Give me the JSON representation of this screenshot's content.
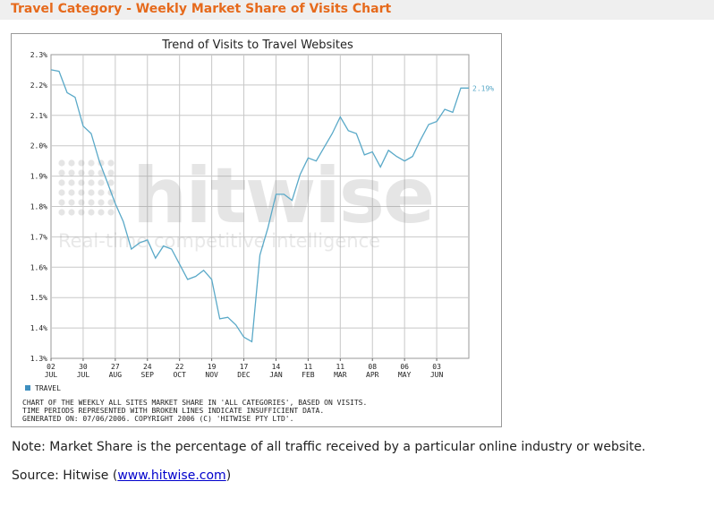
{
  "header": {
    "title": "Travel Category - Weekly Market Share of Visits Chart"
  },
  "note": {
    "text": "Note: Market Share is the percentage of all traffic received by a particular online industry or website."
  },
  "source": {
    "prefix": "Source: Hitwise (",
    "link_text": "www.hitwise.com",
    "suffix": ")"
  },
  "watermark": {
    "brand": "hitwise",
    "tagline": "Real-time competitive intelligence"
  },
  "colors": {
    "line": "#5aa9c8",
    "title": "#e66a1c",
    "grid": "#c8c8c8",
    "legend_swatch": "#3e8fbf",
    "link": "#0000cc"
  },
  "chart_data": {
    "type": "line",
    "title": "Trend of Visits to Travel Websites",
    "xlabel": "",
    "ylabel": "",
    "ylim": [
      1.3,
      2.3
    ],
    "yticks": [
      "2.3%",
      "2.2%",
      "2.1%",
      "2.0%",
      "1.9%",
      "1.8%",
      "1.7%",
      "1.6%",
      "1.5%",
      "1.4%",
      "1.3%"
    ],
    "ytick_values": [
      2.3,
      2.2,
      2.1,
      2.0,
      1.9,
      1.8,
      1.7,
      1.6,
      1.5,
      1.4,
      1.3
    ],
    "xticks": [
      {
        "week": 0,
        "day": "02",
        "month": "JUL"
      },
      {
        "week": 4,
        "day": "30",
        "month": "JUL"
      },
      {
        "week": 8,
        "day": "27",
        "month": "AUG"
      },
      {
        "week": 12,
        "day": "24",
        "month": "SEP"
      },
      {
        "week": 16,
        "day": "22",
        "month": "OCT"
      },
      {
        "week": 20,
        "day": "19",
        "month": "NOV"
      },
      {
        "week": 24,
        "day": "17",
        "month": "DEC"
      },
      {
        "week": 28,
        "day": "14",
        "month": "JAN"
      },
      {
        "week": 32,
        "day": "11",
        "month": "FEB"
      },
      {
        "week": 36,
        "day": "11",
        "month": "MAR"
      },
      {
        "week": 40,
        "day": "08",
        "month": "APR"
      },
      {
        "week": 44,
        "day": "06",
        "month": "MAY"
      },
      {
        "week": 48,
        "day": "03",
        "month": "JUN"
      }
    ],
    "xlim": [
      0,
      52
    ],
    "grid": true,
    "series": [
      {
        "name": "TRAVEL",
        "x": [
          0,
          1,
          2,
          3,
          4,
          5,
          6,
          7,
          8,
          9,
          10,
          11,
          12,
          13,
          14,
          15,
          16,
          17,
          18,
          19,
          20,
          21,
          22,
          23,
          24,
          25,
          26,
          27,
          28,
          29,
          30,
          31,
          32,
          33,
          34,
          35,
          36,
          37,
          38,
          39,
          40,
          41,
          42,
          43,
          44,
          45,
          46,
          47,
          48,
          49,
          50,
          51,
          52
        ],
        "values": [
          2.25,
          2.245,
          2.175,
          2.16,
          2.065,
          2.04,
          1.95,
          1.88,
          1.81,
          1.75,
          1.66,
          1.68,
          1.69,
          1.63,
          1.67,
          1.66,
          1.61,
          1.56,
          1.57,
          1.59,
          1.56,
          1.43,
          1.435,
          1.41,
          1.37,
          1.355,
          1.64,
          1.73,
          1.84,
          1.84,
          1.82,
          1.905,
          1.96,
          1.95,
          1.995,
          2.04,
          2.095,
          2.05,
          2.04,
          1.97,
          1.98,
          1.93,
          1.985,
          1.965,
          1.95,
          1.965,
          2.02,
          2.07,
          2.08,
          2.12,
          2.11,
          2.19,
          2.19
        ],
        "end_label": "2.19%"
      }
    ],
    "legend": {
      "position": "bottom-left"
    },
    "footnote": [
      "CHART OF THE WEEKLY ALL SITES MARKET SHARE IN 'ALL CATEGORIES', BASED ON VISITS.",
      "TIME PERIODS REPRESENTED WITH BROKEN LINES INDICATE INSUFFICIENT DATA.",
      "GENERATED ON: 07/06/2006. COPYRIGHT 2006 (C) 'HITWISE PTY LTD'."
    ]
  }
}
